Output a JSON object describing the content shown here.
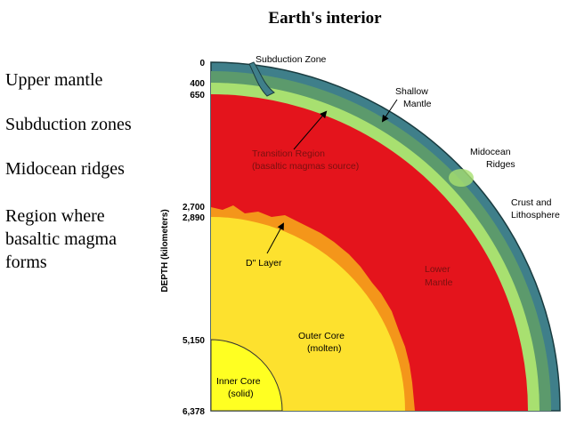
{
  "title": "Earth's interior",
  "bullets": [
    "Upper mantle",
    "Subduction zones",
    "Midocean ridges",
    "Region where",
    "basaltic magma",
    "forms"
  ],
  "diagram": {
    "axis_label": "DEPTH (kilometers)",
    "depth_labels": [
      "0",
      "400",
      "650",
      "2,700",
      "2,890",
      "5,150",
      "6,378"
    ],
    "labels": [
      "Subduction Zone",
      "Shallow",
      "Mantle",
      "Midocean",
      "Ridges",
      "Crust and",
      "Lithosphere",
      "Transition Region",
      "(basaltic magmas source)",
      "D\" Layer",
      "Lower",
      "Mantle",
      "Outer Core",
      "(molten)",
      "Inner Core",
      "(solid)"
    ]
  }
}
